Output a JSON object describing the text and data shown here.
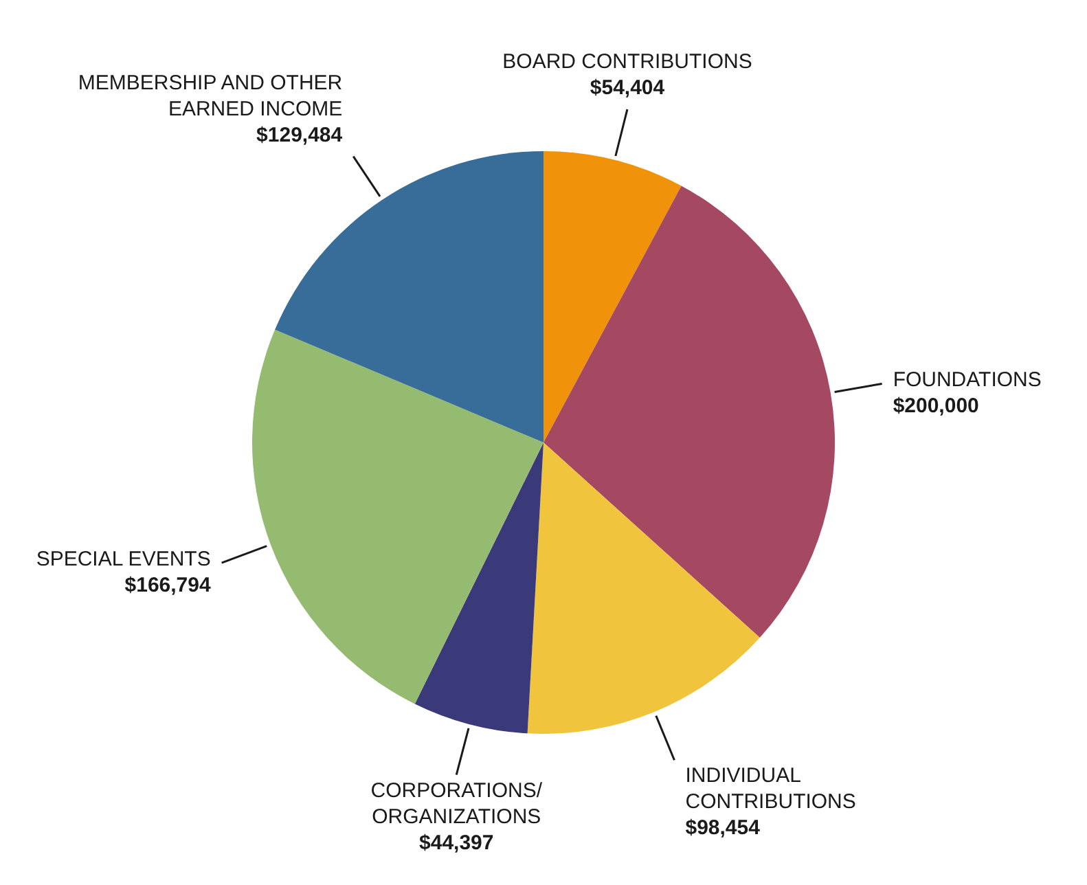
{
  "chart_data": {
    "type": "pie",
    "categories": [
      "BOARD CONTRIBUTIONS",
      "FOUNDATIONS",
      "INDIVIDUAL\nCONTRIBUTIONS",
      "CORPORATIONS/\nORGANIZATIONS",
      "SPECIAL EVENTS",
      "MEMBERSHIP AND OTHER\nEARNED INCOME"
    ],
    "values": [
      54404,
      200000,
      98454,
      44397,
      166794,
      129484
    ],
    "value_labels": [
      "$54,404",
      "$200,000",
      "$98,454",
      "$44,397",
      "$166,794",
      "$129,484"
    ],
    "colors": [
      "#f0920a",
      "#a54862",
      "#f0c43c",
      "#3a3a7a",
      "#95bb70",
      "#376d98"
    ]
  }
}
